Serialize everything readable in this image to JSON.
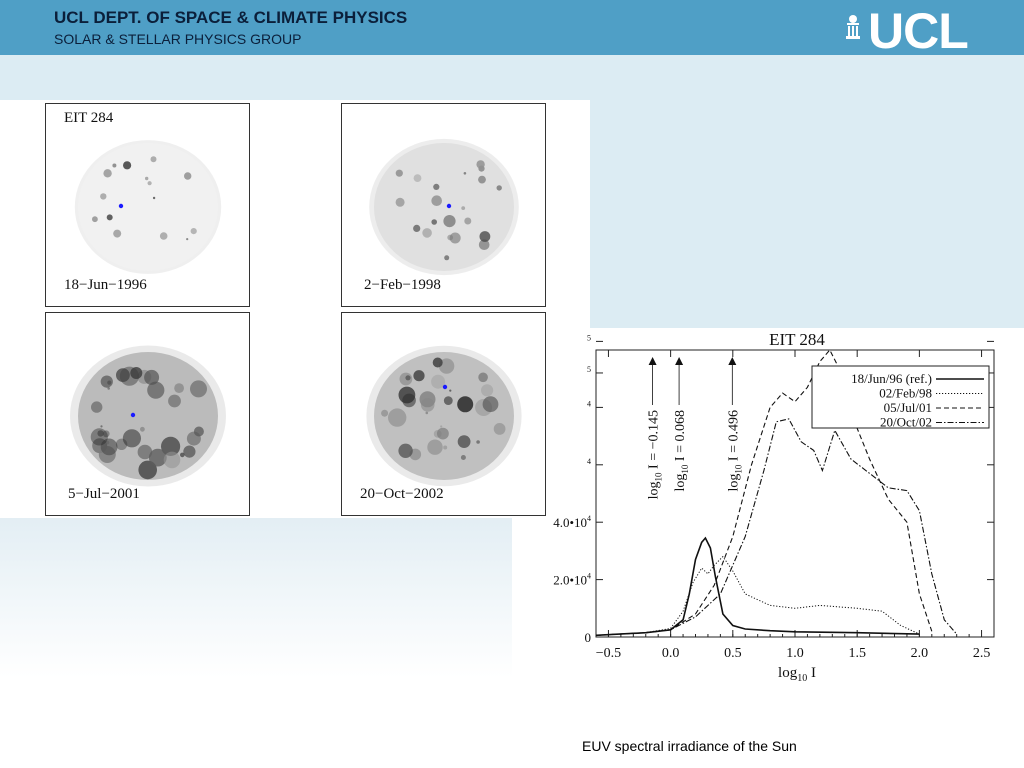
{
  "header": {
    "title": "UCL DEPT. OF SPACE & CLIMATE PHYSICS",
    "subtitle": "SOLAR & STELLAR PHYSICS GROUP",
    "logo": "UCL",
    "logo_icon": "portico-building-icon"
  },
  "images": {
    "instrument": "EIT 284",
    "panels": [
      {
        "date": "18−Jun−1996",
        "activity": 0.15
      },
      {
        "date": "2−Feb−1998",
        "activity": 0.35
      },
      {
        "date": "5−Jul−2001",
        "activity": 0.75
      },
      {
        "date": "20−Oct−2002",
        "activity": 0.7
      }
    ]
  },
  "chart_data": {
    "type": "line",
    "title": "EIT 284",
    "xlabel_main": "log",
    "xlabel_sub": "10",
    "xlabel_tail": " I",
    "xlim": [
      -0.6,
      2.6
    ],
    "ylim": [
      0,
      100000
    ],
    "x_ticks": [
      "−0.5",
      "0.0",
      "0.5",
      "1.0",
      "1.5",
      "2.0",
      "2.5"
    ],
    "x_tick_values": [
      -0.5,
      0.0,
      0.5,
      1.0,
      1.5,
      2.0,
      2.5
    ],
    "y_ticks": [
      {
        "value": 0,
        "base": "0",
        "exp": ""
      },
      {
        "value": 20000,
        "base": "2.0•10",
        "exp": "4"
      },
      {
        "value": 40000,
        "base": "4.0•10",
        "exp": "4"
      },
      {
        "value": 60000,
        "base": "",
        "exp": "4"
      },
      {
        "value": 80000,
        "base": "",
        "exp": "4"
      },
      {
        "value": 92000,
        "base": "",
        "exp": "5"
      },
      {
        "value": 103000,
        "base": "",
        "exp": "5"
      }
    ],
    "markers": [
      {
        "x": -0.145,
        "pre": "log",
        "sub": "10",
        "post": " I = −0.145"
      },
      {
        "x": 0.068,
        "pre": "log",
        "sub": "10",
        "post": " I = 0.068"
      },
      {
        "x": 0.496,
        "pre": "log",
        "sub": "10",
        "post": " I = 0.496"
      }
    ],
    "legend_position": "top-right",
    "series": [
      {
        "name": "18/Jun/96 (ref.)",
        "dash": "",
        "width": 1.6,
        "x": [
          -0.6,
          -0.2,
          0.0,
          0.1,
          0.15,
          0.2,
          0.25,
          0.28,
          0.32,
          0.36,
          0.42,
          0.5,
          0.6,
          0.8,
          1.0,
          1.5,
          2.0
        ],
        "y": [
          600,
          1500,
          2500,
          6000,
          15000,
          27000,
          33000,
          34500,
          31000,
          21000,
          8000,
          4000,
          2800,
          2200,
          1800,
          1500,
          1000
        ]
      },
      {
        "name": "02/Feb/98",
        "dash": "1.2,1.8",
        "width": 1.0,
        "x": [
          -0.6,
          -0.2,
          0.0,
          0.1,
          0.18,
          0.25,
          0.3,
          0.35,
          0.42,
          0.5,
          0.6,
          0.8,
          1.0,
          1.2,
          1.5,
          1.7,
          1.85,
          2.0
        ],
        "y": [
          600,
          1500,
          3000,
          9000,
          19000,
          24000,
          22000,
          25000,
          28000,
          23000,
          15000,
          11000,
          10000,
          11000,
          10000,
          9000,
          4000,
          1000
        ]
      },
      {
        "name": "05/Jul/01",
        "dash": "5,3",
        "width": 1.1,
        "x": [
          -0.6,
          -0.2,
          0.0,
          0.2,
          0.35,
          0.5,
          0.65,
          0.8,
          0.9,
          1.0,
          1.1,
          1.2,
          1.28,
          1.35,
          1.45,
          1.6,
          1.75,
          1.9,
          2.0,
          2.1
        ],
        "y": [
          600,
          1500,
          2500,
          8000,
          18000,
          35000,
          60000,
          80000,
          85000,
          82000,
          87000,
          96000,
          100000,
          94000,
          78000,
          62000,
          48000,
          40000,
          15000,
          2000
        ]
      },
      {
        "name": "20/Oct/02",
        "dash": "6,2,1.5,2",
        "width": 1.1,
        "x": [
          -0.6,
          -0.2,
          0.0,
          0.2,
          0.4,
          0.6,
          0.75,
          0.85,
          0.95,
          1.05,
          1.15,
          1.22,
          1.32,
          1.45,
          1.6,
          1.75,
          1.9,
          2.0,
          2.1,
          2.2,
          2.3
        ],
        "y": [
          600,
          1500,
          2500,
          7000,
          15000,
          35000,
          58000,
          75000,
          76000,
          68000,
          65000,
          58000,
          72000,
          62000,
          57000,
          52000,
          51000,
          44000,
          22000,
          6000,
          1000
        ]
      }
    ]
  },
  "caption": "EUV spectral irradiance of the Sun"
}
